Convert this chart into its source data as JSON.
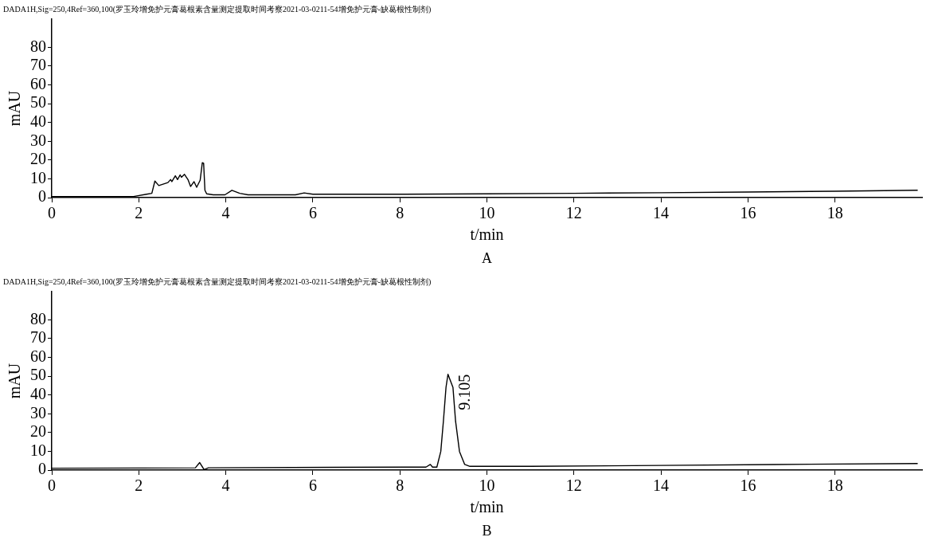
{
  "chart_data": [
    {
      "type": "line",
      "title": "DADA1H,Sig=250,4Ref=360,100(罗玉玲增免护元膏葛根素含量测定提取时间考察2021-03-0211-54增免护元膏-缺葛根性制剂)",
      "xlabel": "t/min",
      "ylabel": "mAU",
      "annotations": [
        "A"
      ],
      "x": [
        0,
        1.5,
        1.88,
        2.18,
        2.3,
        2.37,
        2.46,
        2.67,
        2.73,
        2.76,
        2.84,
        2.89,
        2.95,
        2.98,
        3.05,
        3.13,
        3.19,
        3.27,
        3.33,
        3.41,
        3.46,
        3.49,
        3.52,
        3.56,
        3.71,
        3.98,
        4.14,
        4.32,
        4.51,
        5.6,
        5.8,
        6.0,
        8,
        10,
        12,
        14,
        16,
        18,
        19.9
      ],
      "series": [
        {
          "color": "#000000",
          "values": [
            0.5,
            0.5,
            0.6,
            1.8,
            2.3,
            8.8,
            6.4,
            8.0,
            9.6,
            8.5,
            11.6,
            9.6,
            12.1,
            10.8,
            12.4,
            9.6,
            5.9,
            8.5,
            5.5,
            9.2,
            18.6,
            18.3,
            3.9,
            2,
            1.5,
            1.5,
            3.9,
            2.3,
            1.5,
            1.5,
            2.5,
            1.8,
            1.8,
            2,
            2.3,
            2.6,
            3,
            3.4,
            3.9
          ]
        }
      ],
      "xlim": [
        0,
        20
      ],
      "ylim": [
        0,
        95
      ],
      "xticks": [
        0,
        2,
        4,
        6,
        8,
        10,
        12,
        14,
        16,
        18
      ],
      "yticks": [
        0,
        10,
        20,
        30,
        40,
        50,
        60,
        70,
        80
      ]
    },
    {
      "type": "line",
      "title": "DADA1H,Sig=250,4Ref=360,100(罗玉玲增免护元膏葛根素含量测定提取时间考察2021-03-0211-54增免护元膏-缺葛根性制剂)",
      "xlabel": "t/min",
      "ylabel": "mAU",
      "annotations": [
        "B",
        {
          "text": "9.105",
          "x": 9.105,
          "y": 51
        }
      ],
      "x": [
        0,
        2,
        3.3,
        3.4,
        3.5,
        3.6,
        6.5,
        8.6,
        8.7,
        8.75,
        8.85,
        8.94,
        9.0,
        9.06,
        9.105,
        9.22,
        9.28,
        9.37,
        9.49,
        9.61,
        11,
        14,
        16.6,
        19.9
      ],
      "series": [
        {
          "color": "#000000",
          "values": [
            1,
            1.1,
            1.2,
            4,
            0.3,
            1.2,
            1.5,
            1.6,
            3,
            1.6,
            1.6,
            9.9,
            26,
            44,
            51,
            44,
            26,
            9.9,
            3,
            2,
            2,
            2.5,
            3,
            3.5
          ]
        }
      ],
      "xlim": [
        0,
        20
      ],
      "ylim": [
        0,
        95
      ],
      "xticks": [
        0,
        2,
        4,
        6,
        8,
        10,
        12,
        14,
        16,
        18
      ],
      "yticks": [
        0,
        10,
        20,
        30,
        40,
        50,
        60,
        70,
        80
      ]
    }
  ]
}
